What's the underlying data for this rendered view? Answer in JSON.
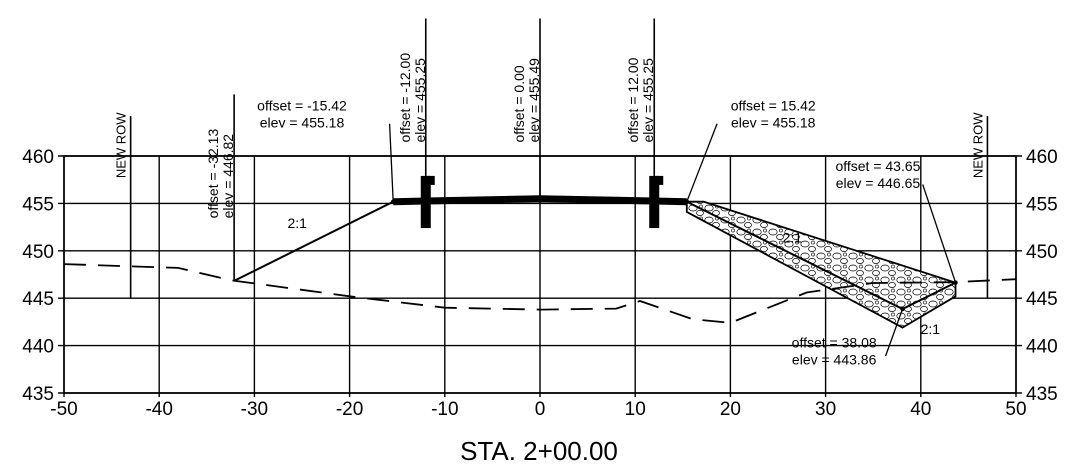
{
  "chart_data": {
    "type": "line",
    "title": "",
    "xlabel": "STA. 2+00.00",
    "ylabel": "",
    "xlim": [
      -50,
      50
    ],
    "ylim": [
      435,
      460
    ],
    "x_ticks": [
      -50,
      -40,
      -30,
      -20,
      -10,
      0,
      10,
      20,
      30,
      40,
      50
    ],
    "y_ticks": [
      435,
      440,
      445,
      450,
      455,
      460
    ],
    "x_tick_labels": [
      "-50",
      "-40",
      "-30",
      "-20",
      "-10",
      "0",
      "10",
      "20",
      "30",
      "40",
      "50"
    ],
    "y_tick_labels": [
      "435",
      "440",
      "445",
      "450",
      "455",
      "460"
    ],
    "grid": true,
    "series": [
      {
        "style": "dashed",
        "points": [
          [
            -50,
            448.6
          ],
          [
            -38,
            448.2
          ],
          [
            -32.5,
            446.9
          ],
          [
            -20,
            445.2
          ],
          [
            -10,
            444.0
          ],
          [
            0,
            443.8
          ],
          [
            8,
            443.9
          ],
          [
            10.5,
            444.7
          ],
          [
            16,
            442.8
          ],
          [
            20,
            442.4
          ],
          [
            28,
            445.6
          ],
          [
            35,
            446.6
          ],
          [
            43.65,
            446.7
          ],
          [
            50,
            447.0
          ]
        ]
      },
      {
        "style": "solid",
        "points": [
          [
            -32.13,
            446.82
          ],
          [
            -15.42,
            455.18
          ],
          [
            -12.0,
            455.25
          ],
          [
            0.0,
            455.49
          ],
          [
            12.0,
            455.25
          ],
          [
            15.42,
            455.18
          ],
          [
            38.08,
            443.86
          ],
          [
            43.65,
            446.65
          ]
        ]
      }
    ],
    "rock_fill": [
      [
        15.42,
        455.18
      ],
      [
        17.2,
        455.18
      ],
      [
        43.65,
        446.65
      ],
      [
        43.65,
        445.2
      ],
      [
        38.08,
        441.9
      ],
      [
        15.42,
        454.1
      ]
    ],
    "pavement": [
      [
        -15.42,
        455.18
      ],
      [
        -12.0,
        455.25
      ],
      [
        0.0,
        455.49
      ],
      [
        12.0,
        455.25
      ],
      [
        15.42,
        455.18
      ]
    ],
    "guardrails": [
      {
        "x": -12.0,
        "y_top": 457.9,
        "y_bottom": 452.4
      },
      {
        "x": 12.0,
        "y_top": 457.9,
        "y_bottom": 452.4
      }
    ],
    "verticals": [
      {
        "x": -43,
        "y_top": 464.2,
        "y_bottom": 445.0,
        "label": "NEW ROW",
        "label_pos": "top"
      },
      {
        "x": -32.13,
        "y_top": 466.5,
        "y_bottom": 446.82,
        "label_lines": [
          "offset = -32.13",
          "elev = 446.82"
        ],
        "label_pos": "left"
      },
      {
        "x": -12.0,
        "y_top": 474.5,
        "y_bottom": 455.25,
        "label_lines": [
          "offset = -12.00",
          "elev = 455.25"
        ],
        "label_pos": "left"
      },
      {
        "x": 0.0,
        "y_top": 474.5,
        "y_bottom": 455.49,
        "label_lines": [
          "offset = 0.00",
          "elev = 455.49"
        ],
        "label_pos": "left"
      },
      {
        "x": 12.0,
        "y_top": 474.5,
        "y_bottom": 455.25,
        "label_lines": [
          "offset = 12.00",
          "elev = 455.25"
        ],
        "label_pos": "left"
      },
      {
        "x": 47,
        "y_top": 464.2,
        "y_bottom": 445.0,
        "label": "NEW ROW",
        "label_pos": "top"
      }
    ],
    "annotations": [
      {
        "lines": [
          "offset = -15.42",
          "elev = 455.18"
        ],
        "anchor": [
          -15.42,
          455.18
        ],
        "text_at": [
          -25.0,
          464.8
        ],
        "elbow": [
          -15.8,
          463.4
        ]
      },
      {
        "lines": [
          "offset = 15.42",
          "elev = 455.18"
        ],
        "anchor": [
          15.42,
          455.18
        ],
        "text_at": [
          24.5,
          464.8
        ],
        "elbow": [
          18.6,
          463.4
        ]
      },
      {
        "lines": [
          "offset = 43.65",
          "elev = 446.65"
        ],
        "anchor": [
          43.65,
          446.65
        ],
        "text_at": [
          35.5,
          458.4
        ],
        "elbow": [
          40.2,
          457.0
        ]
      },
      {
        "lines": [
          "offset = 38.08",
          "elev = 443.86"
        ],
        "anchor": [
          38.08,
          443.86
        ],
        "text_at": [
          30.9,
          439.8
        ],
        "elbow": [
          36.3,
          438.9
        ]
      }
    ],
    "slope_labels": [
      {
        "text": "2:1",
        "at": [
          -25.5,
          452.4
        ]
      },
      {
        "text": "2:1",
        "at": [
          26.5,
          450.9
        ]
      },
      {
        "text": "2:1",
        "at": [
          41.0,
          441.2
        ]
      }
    ]
  }
}
